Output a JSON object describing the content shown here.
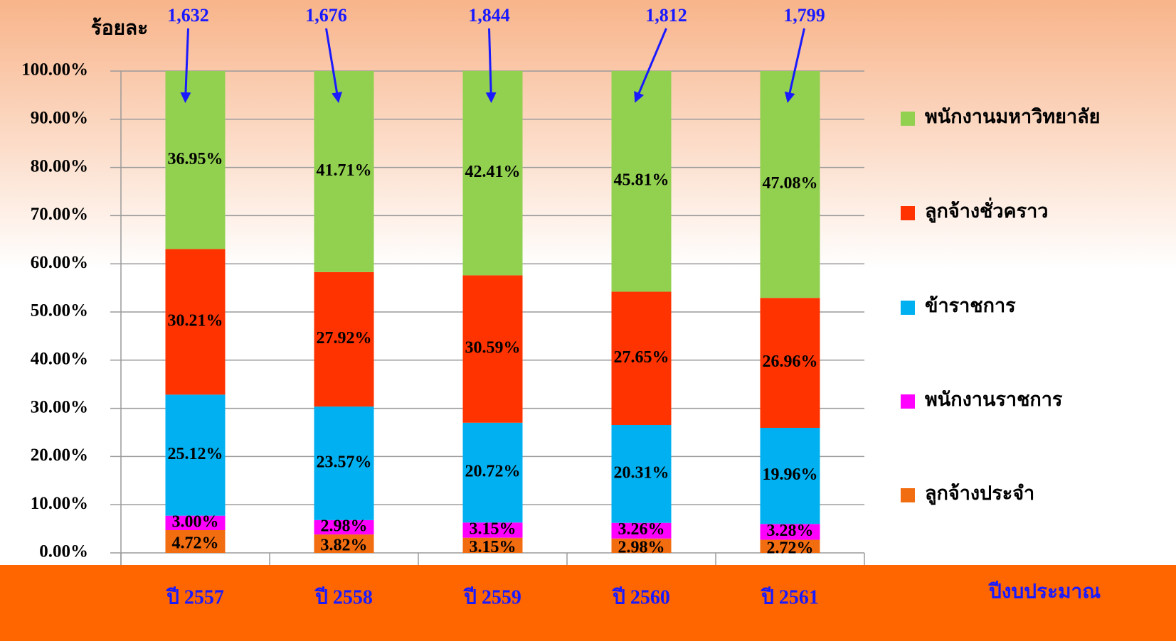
{
  "chart_data": {
    "type": "stacked_bar",
    "y_label": "ร้อยละ",
    "x_label": "ปีงบประมาณ",
    "categories": [
      "ปี 2557",
      "ปี 2558",
      "ปี 2559",
      "ปี 2560",
      "ปี 2561"
    ],
    "series": [
      {
        "name": "ลูกจ้างประจำ",
        "color": "#f26c10",
        "values": [
          4.72,
          3.82,
          3.15,
          2.98,
          2.72
        ],
        "value_labels": [
          "4.72%",
          "3.82%",
          "3.15%",
          "2.98%",
          "2.72%"
        ]
      },
      {
        "name": "พนักงานราชการ",
        "color": "#ff00ff",
        "values": [
          3.0,
          2.98,
          3.15,
          3.26,
          3.28
        ],
        "value_labels": [
          "3.00%",
          "2.98%",
          "3.15%",
          "3.26%",
          "3.28%"
        ]
      },
      {
        "name": "ข้าราชการ",
        "color": "#00b0f0",
        "values": [
          25.12,
          23.57,
          20.72,
          20.31,
          19.96
        ],
        "value_labels": [
          "25.12%",
          "23.57%",
          "20.72%",
          "20.31%",
          "19.96%"
        ]
      },
      {
        "name": "ลูกจ้างชั่วคราว",
        "color": "#ff3300",
        "values": [
          30.21,
          27.92,
          30.59,
          27.65,
          26.96
        ],
        "value_labels": [
          "30.21%",
          "27.92%",
          "30.59%",
          "27.65%",
          "26.96%"
        ]
      },
      {
        "name": "พนักงานมหาวิทยาลัย",
        "color": "#92d050",
        "values": [
          36.95,
          41.71,
          42.41,
          45.81,
          47.08
        ],
        "value_labels": [
          "36.95%",
          "41.71%",
          "42.41%",
          "45.81%",
          "47.08%"
        ]
      }
    ],
    "totals": {
      "values": [
        1632,
        1676,
        1844,
        1812,
        1799
      ],
      "value_labels": [
        "1,632",
        "1,676",
        "1,844",
        "1,812",
        "1,799"
      ]
    },
    "ylim": [
      0,
      100
    ],
    "yticks": [
      {
        "value": 0,
        "label": "0.00%"
      },
      {
        "value": 10,
        "label": "10.00%"
      },
      {
        "value": 20,
        "label": "20.00%"
      },
      {
        "value": 30,
        "label": "30.00%"
      },
      {
        "value": 40,
        "label": "40.00%"
      },
      {
        "value": 50,
        "label": "50.00%"
      },
      {
        "value": 60,
        "label": "60.00%"
      },
      {
        "value": 70,
        "label": "70.00%"
      },
      {
        "value": 80,
        "label": "80.00%"
      },
      {
        "value": 90,
        "label": "90.00%"
      },
      {
        "value": 100,
        "label": "100.00%"
      }
    ],
    "grid": true,
    "legend": "right"
  }
}
